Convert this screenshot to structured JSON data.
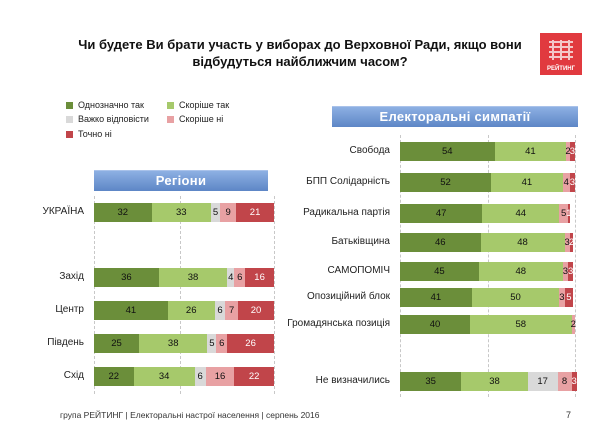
{
  "header": {
    "title_line1": "Чи будете Ви брати участь у виборах до Верховної Ради, якщо вони",
    "title_line2": "відбудуться найближчим часом?",
    "logo_text": "РЕЙТИНГ"
  },
  "legend": {
    "items": [
      {
        "label": "Однозначно так",
        "color": "#6b8e3a"
      },
      {
        "label": "Скоріше  так",
        "color": "#a6c96b"
      },
      {
        "label": "Важко відповісти",
        "color": "#d9d9d9"
      },
      {
        "label": "Скоріше  ні",
        "color": "#e8a1a3"
      },
      {
        "label": "Точно ні",
        "color": "#c1454a"
      }
    ]
  },
  "left_banner": "Регіони",
  "right_banner": "Електоральні симпатії",
  "chart_data": [
    {
      "type": "bar",
      "stacked": true,
      "orientation": "horizontal",
      "categories": [
        "УКРАЇНА",
        "Захід",
        "Центр",
        "Південь",
        "Схід"
      ],
      "series": [
        {
          "name": "Однозначно так",
          "color": "#6b8e3a",
          "values": [
            32,
            36,
            41,
            25,
            22
          ]
        },
        {
          "name": "Скоріше  так",
          "color": "#a6c96b",
          "values": [
            33,
            38,
            26,
            38,
            34
          ]
        },
        {
          "name": "Важко відповісти",
          "color": "#d9d9d9",
          "values": [
            5,
            4,
            6,
            5,
            6
          ]
        },
        {
          "name": "Скоріше  ні",
          "color": "#e8a1a3",
          "values": [
            9,
            6,
            7,
            6,
            16
          ]
        },
        {
          "name": "Точно ні",
          "color": "#c1454a",
          "values": [
            21,
            16,
            20,
            26,
            22
          ]
        }
      ],
      "xlim": [
        0,
        100
      ]
    },
    {
      "type": "bar",
      "stacked": true,
      "orientation": "horizontal",
      "categories": [
        "Свобода",
        "БПП Солідарність",
        "Радикальна партія",
        "Батьківщина",
        "САМОПОМІЧ",
        "Опозиційний блок",
        "Громадянська позиція",
        "Не визначились"
      ],
      "series": [
        {
          "name": "Однозначно так",
          "color": "#6b8e3a",
          "values": [
            54,
            52,
            47,
            46,
            45,
            41,
            40,
            35
          ]
        },
        {
          "name": "Скоріше  так",
          "color": "#a6c96b",
          "values": [
            41,
            41,
            44,
            48,
            48,
            50,
            58,
            38
          ]
        },
        {
          "name": "Важко відповісти",
          "color": "#d9d9d9",
          "values": [
            0,
            0,
            0,
            0,
            0,
            0,
            0,
            17
          ]
        },
        {
          "name": "Скоріше  ні",
          "color": "#e8a1a3",
          "values": [
            2,
            4,
            5,
            3,
            3,
            3,
            2,
            8
          ]
        },
        {
          "name": "Точно ні",
          "color": "#c1454a",
          "values": [
            3,
            3,
            1,
            2,
            3,
            5,
            0,
            3
          ]
        }
      ],
      "xlim": [
        0,
        100
      ]
    }
  ],
  "footer": {
    "text": "група РЕЙТИНГ  |  Електоральні настрої населення  |  серпень 2016",
    "page": "7"
  }
}
